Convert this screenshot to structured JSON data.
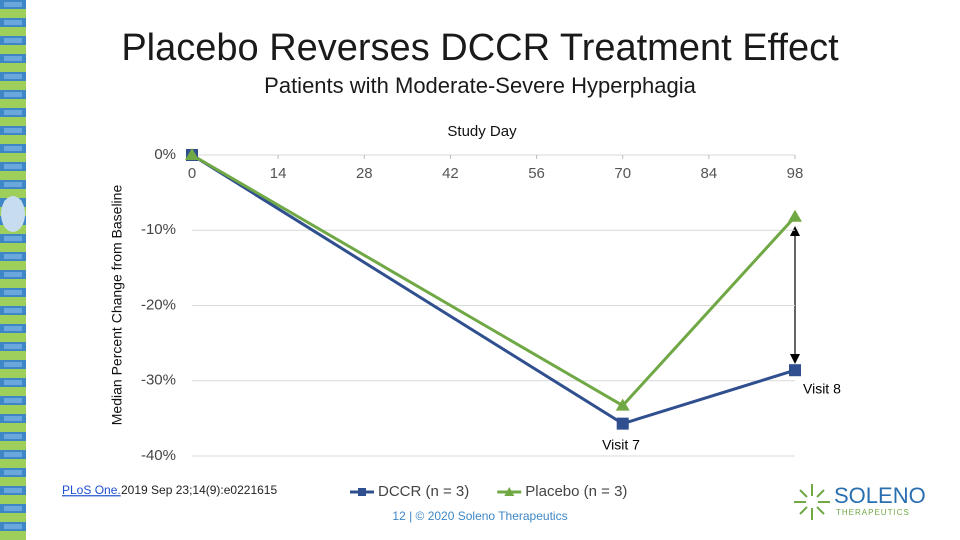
{
  "chart_data": {
    "type": "line",
    "title": "Placebo Reverses DCCR Treatment Effect",
    "subtitle": "Patients with Moderate-Severe Hyperphagia",
    "xlabel": "Study Day",
    "ylabel": "Median Percent Change from Baseline",
    "x": [
      0,
      70,
      98
    ],
    "series": [
      {
        "name": "DCCR (n = 3)",
        "color": "#2f4f8f",
        "marker": "square",
        "values": [
          0,
          -35.7,
          -28.6
        ]
      },
      {
        "name": "Placebo (n = 3)",
        "color": "#70a845",
        "marker": "triangle",
        "values": [
          0,
          -33.3,
          -8.2
        ]
      }
    ],
    "xlim": [
      0,
      98
    ],
    "xticks": [
      0,
      14,
      28,
      42,
      56,
      70,
      84,
      98
    ],
    "ylim": [
      -40,
      0
    ],
    "yticks": [
      {
        "value": 0,
        "label": "0%"
      },
      {
        "value": -10,
        "label": "-10%"
      },
      {
        "value": -20,
        "label": "-20%"
      },
      {
        "value": -30,
        "label": "-30%"
      },
      {
        "value": -40,
        "label": "-40%"
      }
    ],
    "grid": true,
    "legend": "bottom",
    "annotations": [
      "Visit 7",
      "Visit 8"
    ]
  },
  "citation": {
    "link": "PLoS One.",
    "text": "2019 Sep 23;14(9):e0221615"
  },
  "footer": "12  |  © 2020 Soleno Therapeutics",
  "logo": {
    "name": "SOLENO",
    "tagline": "THERAPEUTICS"
  }
}
